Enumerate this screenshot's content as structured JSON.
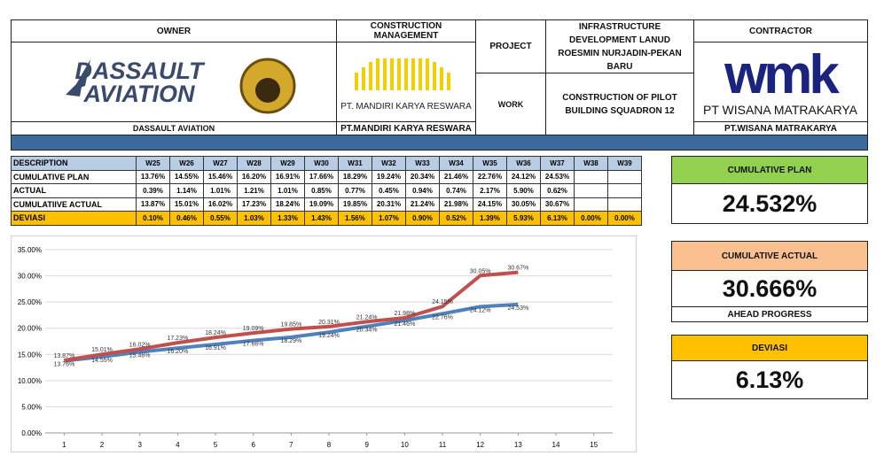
{
  "header": {
    "owner": {
      "title": "OWNER",
      "logo_lines": [
        "DASSAULT",
        "AVIATION"
      ],
      "caption": "DASSAULT AVIATION"
    },
    "cm": {
      "title": "CONSTRUCTION MANAGEMENT",
      "logo_text": "PT. MANDIRI KARYA RESWARA",
      "caption": "PT.MANDIRI KARYA RESWARA"
    },
    "project": {
      "label": "PROJECT",
      "value": "INFRASTRUCTURE DEVELOPMENT LANUD ROESMIN NURJADIN-PEKAN BARU"
    },
    "work": {
      "label": "WORK",
      "value": "CONSTRUCTION OF PILOT BUILDING SQUADRON 12"
    },
    "contractor": {
      "title": "CONTRACTOR",
      "logo_text": "wmk",
      "logo_name": "PT WISANA MATRAKARYA",
      "caption": "PT.WISANA MATRAKARYA"
    }
  },
  "table": {
    "header": [
      "DESCRIPTION",
      "W25",
      "W26",
      "W27",
      "W28",
      "W29",
      "W30",
      "W31",
      "W32",
      "W33",
      "W34",
      "W35",
      "W36",
      "W37",
      "W38",
      "W39"
    ],
    "rows": [
      [
        "CUMULATIVE PLAN",
        "13.76%",
        "14.55%",
        "15.46%",
        "16.20%",
        "16.91%",
        "17.66%",
        "18.29%",
        "19.24%",
        "20.34%",
        "21.46%",
        "22.76%",
        "24.12%",
        "24.53%"
      ],
      [
        "ACTUAL",
        "0.39%",
        "1.14%",
        "1.01%",
        "1.21%",
        "1.01%",
        "0.85%",
        "0.77%",
        "0.45%",
        "0.94%",
        "0.74%",
        "2.17%",
        "5.90%",
        "0.62%"
      ],
      [
        "CUMULATIIVE ACTUAL",
        "13.87%",
        "15.01%",
        "16.02%",
        "17.23%",
        "18.24%",
        "19.09%",
        "19.85%",
        "20.31%",
        "21.24%",
        "21.98%",
        "24.15%",
        "30.05%",
        "30.67%"
      ],
      [
        "DEVIASI",
        "0.10%",
        "0.46%",
        "0.55%",
        "1.03%",
        "1.33%",
        "1.43%",
        "1.56%",
        "1.07%",
        "0.90%",
        "0.52%",
        "1.39%",
        "5.93%",
        "6.13%",
        "0.00%",
        "0.00%"
      ]
    ]
  },
  "chart_data": {
    "type": "line",
    "x": [
      1,
      2,
      3,
      4,
      5,
      6,
      7,
      8,
      9,
      10,
      11,
      12,
      13
    ],
    "xlim": [
      0.5,
      15.5
    ],
    "xticks": [
      1,
      2,
      3,
      4,
      5,
      6,
      7,
      8,
      9,
      10,
      11,
      12,
      13,
      14,
      15
    ],
    "ylim": [
      0,
      35
    ],
    "yticks": [
      {
        "value": 0,
        "label": "0.00%"
      },
      {
        "value": 5,
        "label": "5.00%"
      },
      {
        "value": 10,
        "label": "10.00%"
      },
      {
        "value": 15,
        "label": "15.00%"
      },
      {
        "value": 20,
        "label": "20.00%"
      },
      {
        "value": 25,
        "label": "25.00%"
      },
      {
        "value": 30,
        "label": "30.00%"
      },
      {
        "value": 35,
        "label": "35.00%"
      }
    ],
    "grid": true,
    "series": [
      {
        "name": "CUMULATIVE PLAN",
        "color": "#4f81bd",
        "values": [
          13.76,
          14.55,
          15.46,
          16.2,
          16.91,
          17.66,
          18.29,
          19.24,
          20.34,
          21.46,
          22.76,
          24.12,
          24.53
        ],
        "value_labels": [
          "13.76%",
          "14.55%",
          "15.46%",
          "16.20%",
          "16.91%",
          "17.66%",
          "18.29%",
          "19.24%",
          "20.34%",
          "21.46%",
          "22.76%",
          "24.12%",
          "24.53%"
        ]
      },
      {
        "name": "CUMULATIVE ACTUAL",
        "color": "#c0504d",
        "values": [
          13.87,
          15.01,
          16.02,
          17.23,
          18.24,
          19.09,
          19.85,
          20.31,
          21.24,
          21.98,
          24.15,
          30.05,
          30.67
        ],
        "value_labels": [
          "13.87%",
          "15.01%",
          "16.02%",
          "17.23%",
          "18.24%",
          "19.09%",
          "19.85%",
          "20.31%",
          "21.24%",
          "21.98%",
          "24.15%",
          "30.05%",
          "30.67%"
        ]
      }
    ]
  },
  "kpis": {
    "plan": {
      "title": "CUMULATIVE PLAN",
      "value": "24.532%"
    },
    "actual": {
      "title": "CUMULATIVE ACTUAL",
      "value": "30.666%",
      "note": "AHEAD PROGRESS"
    },
    "deviation": {
      "title": "DEVIASI",
      "value": "6.13%"
    }
  }
}
